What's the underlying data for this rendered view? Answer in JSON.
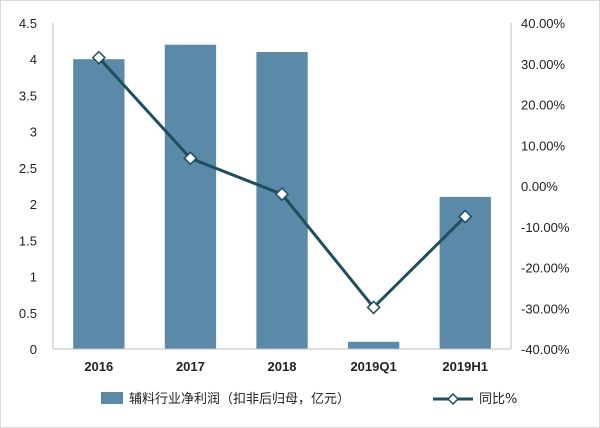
{
  "chart_data": {
    "type": "bar",
    "categories": [
      "2016",
      "2017",
      "2018",
      "2019Q1",
      "2019H1"
    ],
    "series": [
      {
        "name": "辅料行业净利润（扣非后归母，亿元）",
        "type": "bar",
        "axis": "left",
        "values": [
          4.0,
          4.2,
          4.1,
          0.1,
          2.1
        ]
      },
      {
        "name": "同比%",
        "type": "line",
        "axis": "right",
        "values": [
          31.5,
          6.8,
          -2.0,
          -29.8,
          -7.5
        ]
      }
    ],
    "y_left": {
      "min": 0,
      "max": 4.5,
      "ticks": [
        "0",
        "0.5",
        "1",
        "1.5",
        "2",
        "2.5",
        "3",
        "3.5",
        "4",
        "4.5"
      ]
    },
    "y_right": {
      "min": -40,
      "max": 40,
      "unit": "%",
      "ticks": [
        "-40.00%",
        "-30.00%",
        "-20.00%",
        "-10.00%",
        "0.00%",
        "10.00%",
        "20.00%",
        "30.00%",
        "40.00%"
      ]
    },
    "grid": false,
    "legend_position": "bottom",
    "colors": {
      "bar": "#5b8aa8",
      "line": "#1f4e5f",
      "marker_fill": "#ffffff"
    }
  }
}
